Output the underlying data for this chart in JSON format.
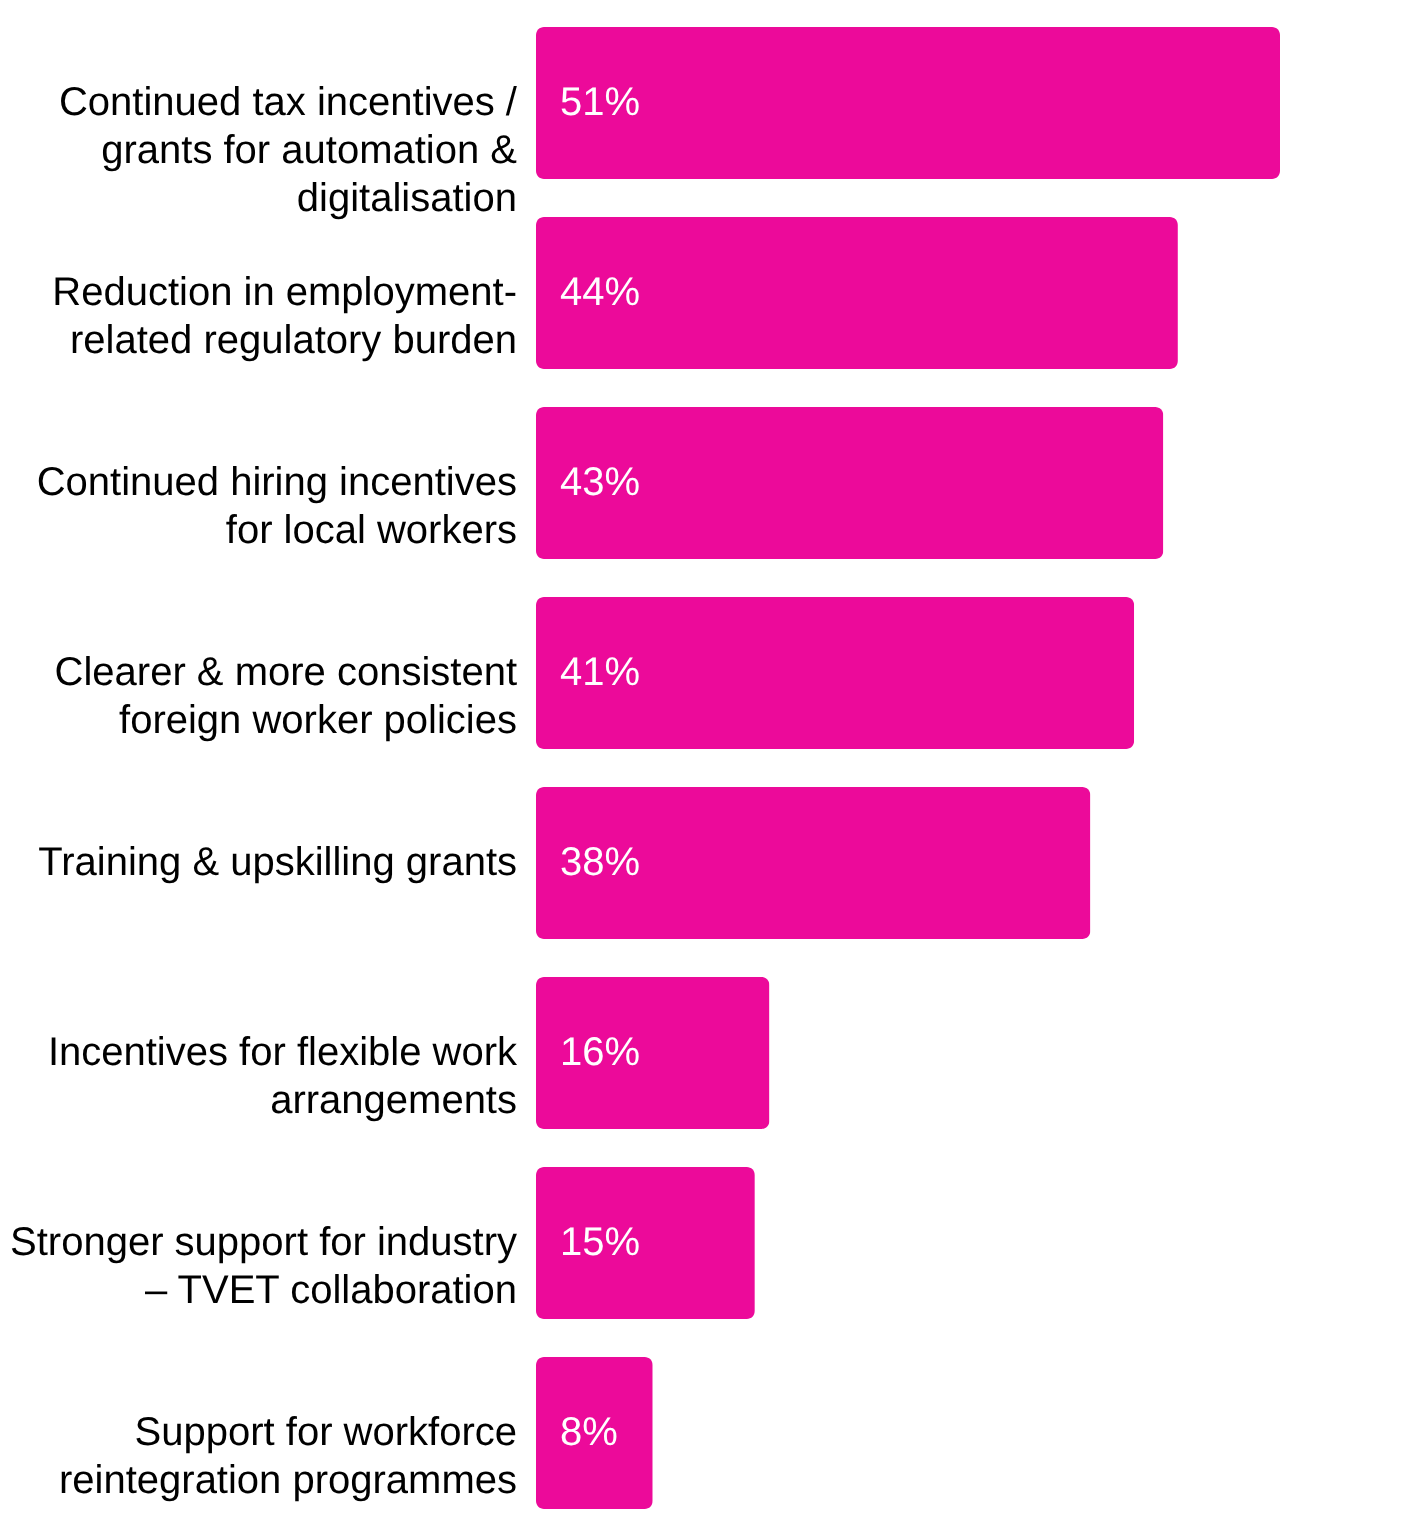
{
  "chart_data": {
    "type": "bar",
    "orientation": "horizontal",
    "color": "#ec0a9a",
    "categories": [
      "Continued tax incentives / grants for automation & digitalisation",
      "Reduction in employment-related regulatory burden",
      "Continued hiring incentives for local workers",
      "Clearer & more consistent foreign worker policies",
      "Training & upskilling grants",
      "Incentives for flexible work arrangements",
      "Stronger support for industry – TVET collaboration",
      "Support for workforce reintegration programmes"
    ],
    "values": [
      51,
      44,
      43,
      41,
      38,
      16,
      15,
      8
    ],
    "value_labels": [
      "51%",
      "44%",
      "43%",
      "41%",
      "38%",
      "16%",
      "15%",
      "8%"
    ]
  }
}
